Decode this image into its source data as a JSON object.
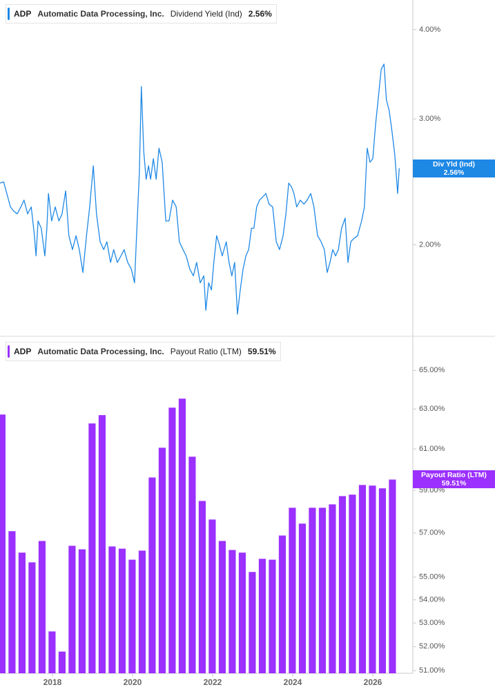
{
  "chart_data": [
    {
      "type": "line",
      "ticker": "ADP",
      "company": "Automatic Data Processing, Inc.",
      "value_label": "2.56%",
      "badge_label": "Div Yld (Ind)",
      "log_scale": true,
      "x": [
        2016.69,
        2016.78,
        2016.86,
        2016.95,
        2017.03,
        2017.12,
        2017.21,
        2017.29,
        2017.38,
        2017.47,
        2017.55,
        2017.59,
        2017.64,
        2017.72,
        2017.81,
        2017.86,
        2017.9,
        2017.98,
        2018.07,
        2018.16,
        2018.24,
        2018.33,
        2018.41,
        2018.5,
        2018.59,
        2018.67,
        2018.76,
        2018.85,
        2018.93,
        2019.02,
        2019.1,
        2019.19,
        2019.28,
        2019.36,
        2019.45,
        2019.53,
        2019.62,
        2019.71,
        2019.79,
        2019.88,
        2019.97,
        2020.05,
        2020.1,
        2020.17,
        2020.22,
        2020.28,
        2020.34,
        2020.4,
        2020.45,
        2020.52,
        2020.59,
        2020.66,
        2020.74,
        2020.83,
        2020.91,
        2021.0,
        2021.09,
        2021.17,
        2021.26,
        2021.34,
        2021.43,
        2021.52,
        2021.6,
        2021.69,
        2021.78,
        2021.83,
        2021.9,
        2021.97,
        2022.03,
        2022.1,
        2022.17,
        2022.24,
        2022.34,
        2022.41,
        2022.48,
        2022.55,
        2022.62,
        2022.69,
        2022.76,
        2022.83,
        2022.9,
        2022.97,
        2023.03,
        2023.1,
        2023.17,
        2023.24,
        2023.33,
        2023.41,
        2023.5,
        2023.59,
        2023.67,
        2023.76,
        2023.83,
        2023.9,
        2023.97,
        2024.03,
        2024.1,
        2024.19,
        2024.28,
        2024.36,
        2024.45,
        2024.53,
        2024.62,
        2024.71,
        2024.79,
        2024.86,
        2024.93,
        2025.0,
        2025.07,
        2025.14,
        2025.22,
        2025.31,
        2025.38,
        2025.45,
        2025.52,
        2025.62,
        2025.72,
        2025.79,
        2025.86,
        2025.93,
        2026.0,
        2026.07,
        2026.14,
        2026.21,
        2026.28,
        2026.34,
        2026.41,
        2026.48,
        2026.55,
        2026.62,
        2026.66
      ],
      "series": [
        {
          "name": "Dividend Yield (Ind)",
          "color": "#1e88e5",
          "values": [
            2.44,
            2.45,
            2.36,
            2.26,
            2.23,
            2.21,
            2.26,
            2.31,
            2.21,
            2.26,
            2.06,
            1.93,
            2.16,
            2.11,
            1.93,
            2.11,
            2.36,
            2.16,
            2.26,
            2.16,
            2.21,
            2.38,
            2.06,
            1.97,
            2.06,
            1.97,
            1.83,
            2.06,
            2.26,
            2.58,
            2.21,
            2.02,
            1.97,
            2.02,
            1.89,
            1.97,
            1.89,
            1.93,
            1.97,
            1.89,
            1.85,
            1.77,
            2.06,
            2.52,
            3.33,
            2.7,
            2.47,
            2.58,
            2.47,
            2.64,
            2.47,
            2.73,
            2.61,
            2.16,
            2.16,
            2.31,
            2.26,
            2.02,
            1.97,
            1.93,
            1.85,
            1.81,
            1.89,
            1.77,
            1.81,
            1.62,
            1.77,
            1.73,
            1.89,
            2.06,
            2.0,
            1.93,
            2.02,
            1.89,
            1.81,
            1.89,
            1.6,
            1.73,
            1.85,
            1.93,
            1.97,
            2.11,
            2.11,
            2.26,
            2.31,
            2.33,
            2.36,
            2.28,
            2.26,
            2.02,
            1.97,
            2.06,
            2.21,
            2.44,
            2.41,
            2.36,
            2.26,
            2.31,
            2.28,
            2.31,
            2.36,
            2.26,
            2.06,
            2.02,
            1.97,
            1.83,
            1.89,
            1.97,
            1.93,
            1.97,
            2.11,
            2.18,
            1.89,
            2.02,
            2.04,
            2.06,
            2.16,
            2.26,
            2.73,
            2.61,
            2.64,
            2.95,
            3.22,
            3.52,
            3.58,
            3.19,
            3.08,
            2.88,
            2.67,
            2.36,
            2.56
          ]
        }
      ],
      "xlim": [
        2016.69,
        2027.0
      ],
      "ylim": [
        1.49,
        4.4
      ],
      "yticks": [
        {
          "value": 2,
          "label": "2.00%"
        },
        {
          "value": 3,
          "label": "3.00%"
        },
        {
          "value": 4,
          "label": "4.00%"
        }
      ]
    },
    {
      "type": "bar",
      "ticker": "ADP",
      "company": "Automatic Data Processing, Inc.",
      "value_label": "59.51%",
      "badge_label": "Payout Ratio (LTM)",
      "log_scale": true,
      "x": [
        2016.74,
        2016.99,
        2017.24,
        2017.49,
        2017.74,
        2017.99,
        2018.24,
        2018.49,
        2018.74,
        2018.99,
        2019.24,
        2019.49,
        2019.74,
        2019.99,
        2020.24,
        2020.49,
        2020.74,
        2020.99,
        2021.24,
        2021.49,
        2021.74,
        2021.99,
        2022.24,
        2022.49,
        2022.74,
        2022.99,
        2023.24,
        2023.49,
        2023.74,
        2023.99,
        2024.24,
        2024.49,
        2024.74,
        2024.99,
        2025.24,
        2025.49,
        2025.74,
        2025.99,
        2026.24,
        2026.49
      ],
      "series": [
        {
          "name": "Payout Ratio (LTM)",
          "color": "#9b30ff",
          "values": [
            62.72,
            57.08,
            56.1,
            55.66,
            56.63,
            52.64,
            51.79,
            56.41,
            56.25,
            62.27,
            62.69,
            56.38,
            56.28,
            55.78,
            56.19,
            59.61,
            61.06,
            63.07,
            63.53,
            60.62,
            58.49,
            57.62,
            56.63,
            56.22,
            56.1,
            55.23,
            55.82,
            55.78,
            56.88,
            58.17,
            57.43,
            58.17,
            58.17,
            58.33,
            58.72,
            58.79,
            59.25,
            59.22,
            59.09,
            59.51
          ]
        }
      ],
      "xlim": [
        2016.69,
        2027.0
      ],
      "xticks": [
        2018,
        2020,
        2022,
        2024,
        2026
      ],
      "ylim": [
        50.89,
        66.7
      ],
      "yticks": [
        {
          "value": 51,
          "label": "51.00%"
        },
        {
          "value": 52,
          "label": "52.00%"
        },
        {
          "value": 53,
          "label": "53.00%"
        },
        {
          "value": 54,
          "label": "54.00%"
        },
        {
          "value": 55,
          "label": "55.00%"
        },
        {
          "value": 57,
          "label": "57.00%"
        },
        {
          "value": 59,
          "label": "59.00%"
        },
        {
          "value": 61,
          "label": "61.00%"
        },
        {
          "value": 63,
          "label": "63.00%"
        },
        {
          "value": 65,
          "label": "65.00%"
        }
      ]
    }
  ]
}
